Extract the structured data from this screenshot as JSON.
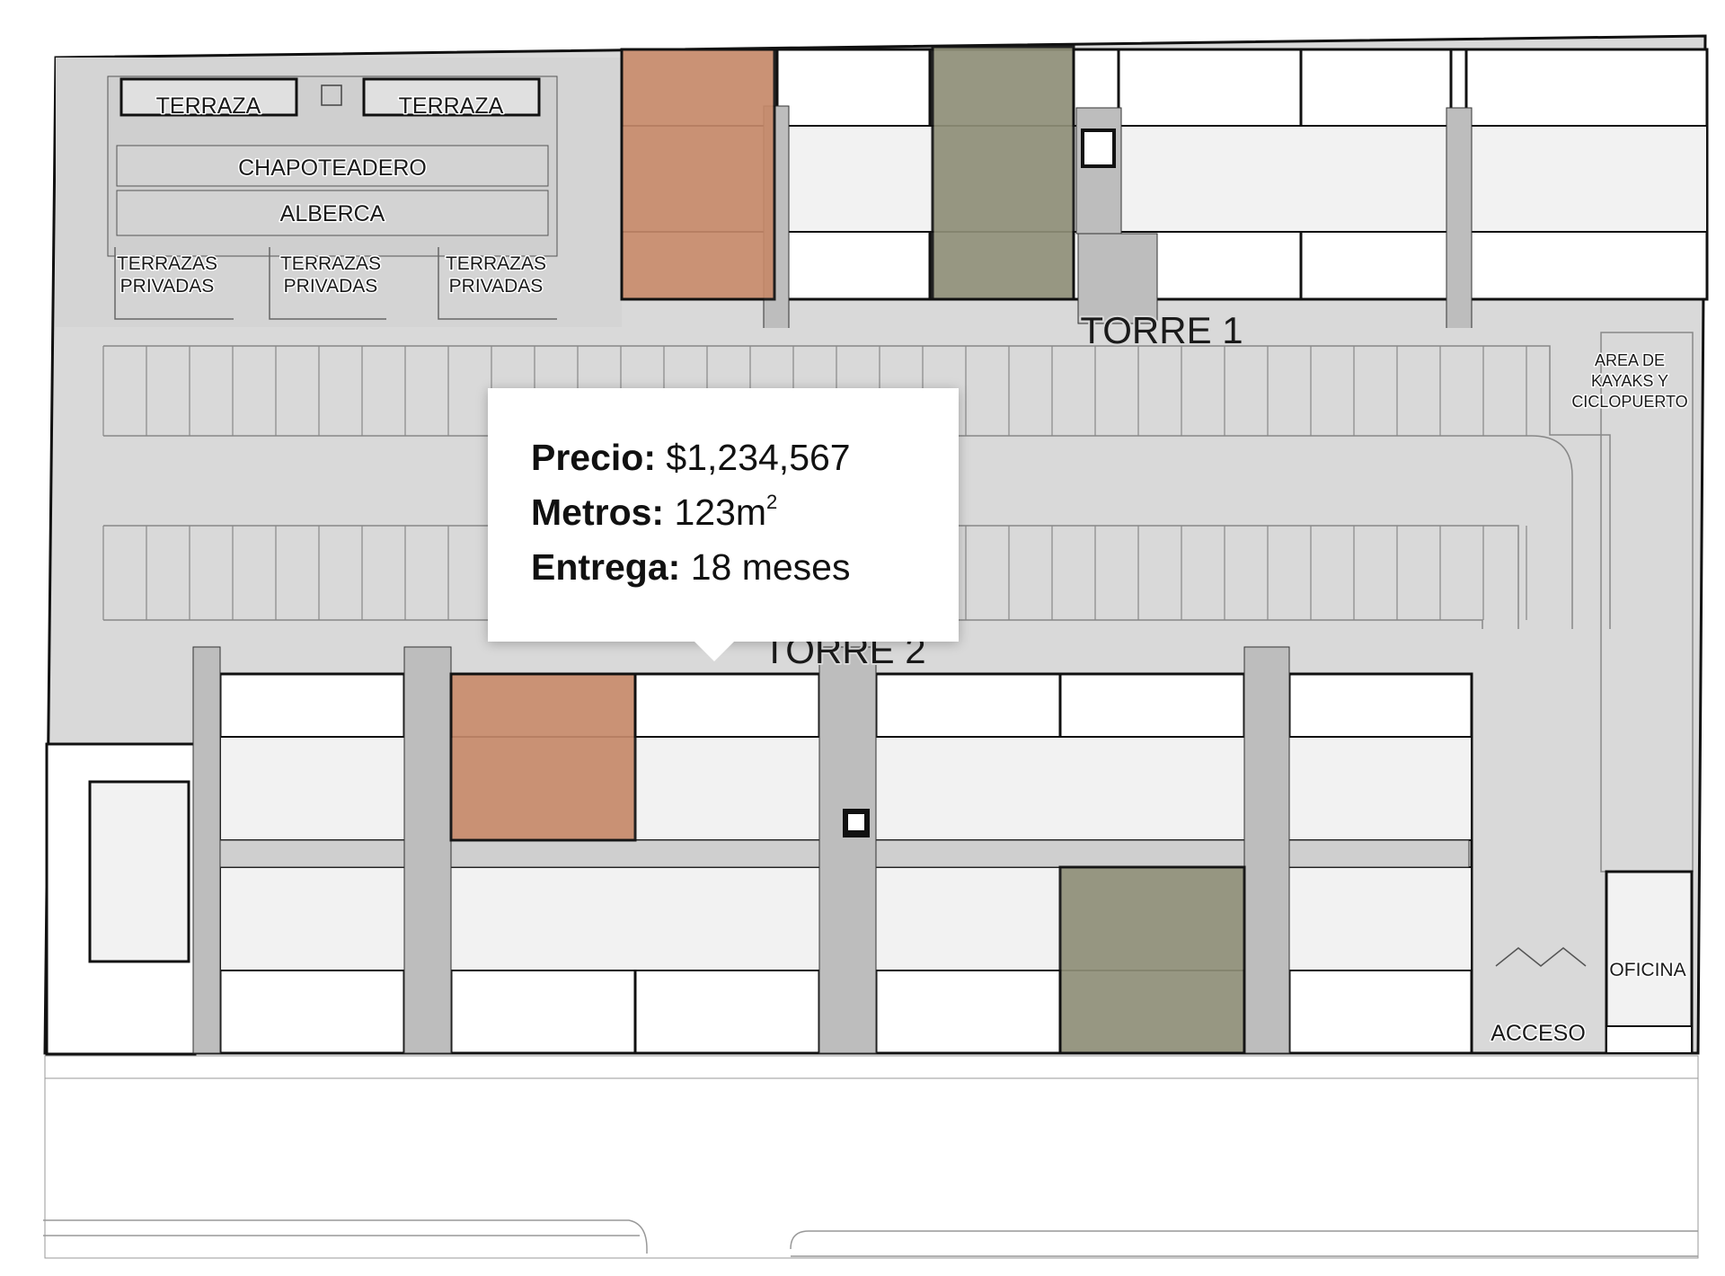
{
  "labels": {
    "terraza_1": "TERRAZA",
    "terraza_2": "TERRAZA",
    "chapoteadero": "CHAPOTEADERO",
    "alberca": "ALBERCA",
    "terrazas_privadas_1_a": "TERRAZAS",
    "terrazas_privadas_1_b": "PRIVADAS",
    "terrazas_privadas_2_a": "TERRAZAS",
    "terrazas_privadas_2_b": "PRIVADAS",
    "terrazas_privadas_3_a": "TERRAZAS",
    "terrazas_privadas_3_b": "PRIVADAS",
    "torre_1": "TORRE 1",
    "torre_2": "TORRE 2",
    "kayaks_1": "AREA DE",
    "kayaks_2": "KAYAKS Y",
    "kayaks_3": "CICLOPUERTO",
    "oficina": "OFICINA",
    "acceso": "ACCESO"
  },
  "popup": {
    "precio_label": "Precio:",
    "precio_value": "$1,234,567",
    "metros_label": "Metros:",
    "metros_value": "123m",
    "metros_sup": "2",
    "entrega_label": "Entrega:",
    "entrega_value": "18 meses"
  },
  "colors": {
    "available_unit": "#c6896a",
    "reserved_unit": "#8f8f78",
    "pavement": "#d9d9d9",
    "walls": "#111111"
  }
}
